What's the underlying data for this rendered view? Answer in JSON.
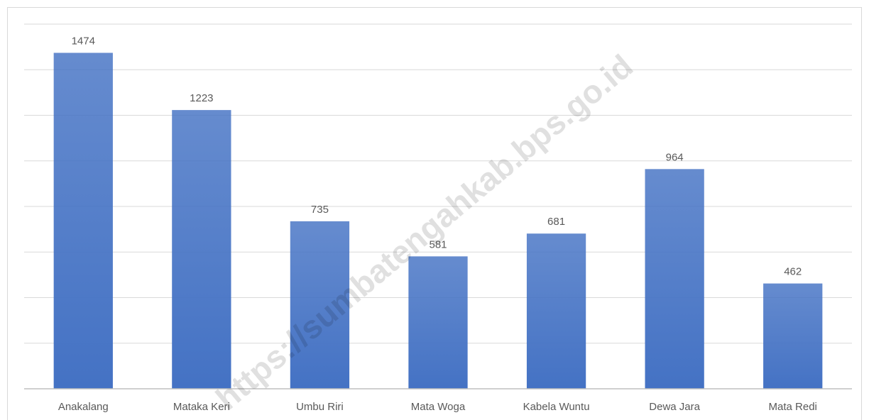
{
  "chart_data": {
    "type": "bar",
    "categories": [
      "Anakalang",
      "Mataka Keri",
      "Umbu Riri",
      "Mata Woga",
      "Kabela Wuntu",
      "Dewa Jara",
      "Mata Redi"
    ],
    "values": [
      1474,
      1223,
      735,
      581,
      681,
      964,
      462
    ],
    "color": "#4472c4",
    "ylim": [
      0,
      1600
    ],
    "yticks": [
      0,
      200,
      400,
      600,
      800,
      1000,
      1200,
      1400,
      1600
    ],
    "grid": true,
    "annotation": "https://sumbatengahkab.bps.go.id"
  }
}
